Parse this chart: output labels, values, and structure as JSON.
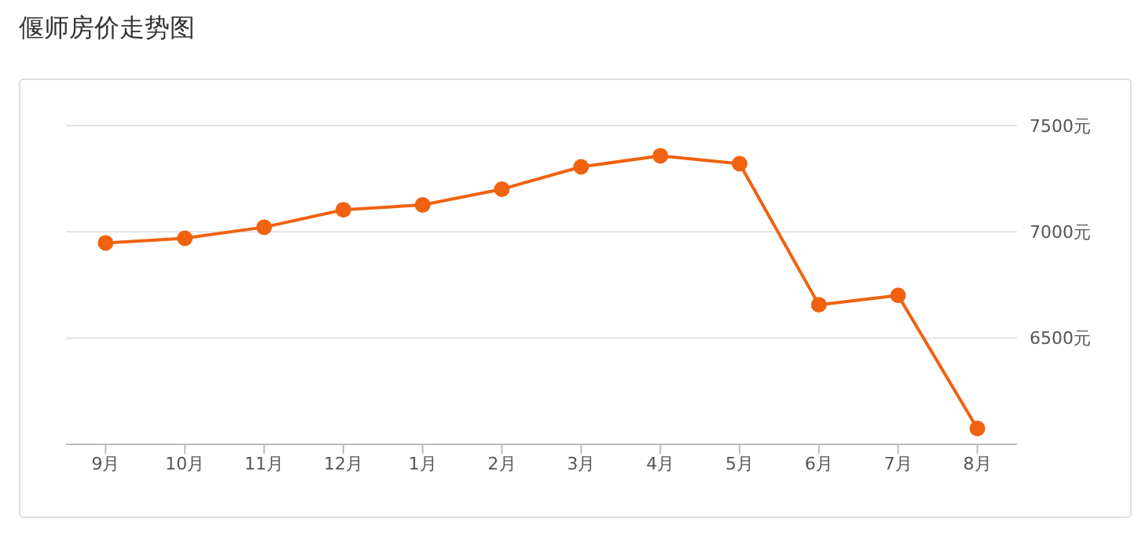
{
  "chart_data": {
    "type": "line",
    "title": "偃师房价走势图",
    "categories": [
      "9月",
      "10月",
      "11月",
      "12月",
      "1月",
      "2月",
      "3月",
      "4月",
      "5月",
      "6月",
      "7月",
      "8月"
    ],
    "series": [
      {
        "color": "#f0620f",
        "values": [
          6948,
          6970,
          7022,
          7104,
          7127,
          7201,
          7306,
          7358,
          7321,
          6657,
          6701,
          6075
        ]
      }
    ],
    "ylim": [
      6000,
      7500
    ],
    "yticks": [
      {
        "value": 6500,
        "label": "6500元"
      },
      {
        "value": 7000,
        "label": "7000元"
      },
      {
        "value": 7500,
        "label": "7500元"
      }
    ],
    "grid": "y",
    "marker": "circle",
    "line_style": "solid",
    "legend": false
  }
}
